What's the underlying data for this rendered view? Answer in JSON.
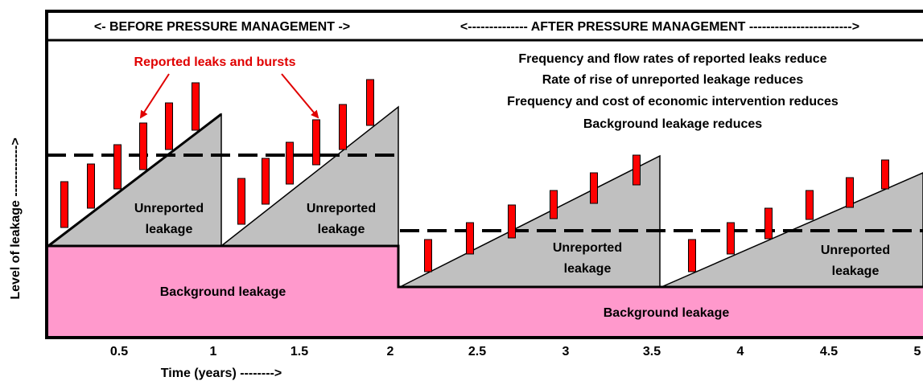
{
  "header": {
    "before": "<- BEFORE PRESSURE MANAGEMENT ->",
    "after": "<-------------- AFTER PRESSURE MANAGEMENT ------------------------>"
  },
  "annotation": "Reported leaks and bursts",
  "notes": [
    "Frequency and flow rates of reported leaks reduce",
    "Rate of rise of unreported leakage reduces",
    "Frequency and cost of economic intervention reduces",
    "Background leakage reduces"
  ],
  "unreported_labels": [
    [
      "Unreported",
      "leakage"
    ],
    [
      "Unreported",
      "leakage"
    ],
    [
      "Unreported",
      "leakage"
    ],
    [
      "Unreported",
      "leakage"
    ]
  ],
  "background_labels": [
    "Background leakage",
    "Background leakage"
  ],
  "x_ticks": [
    "0.5",
    "1",
    "1.5",
    "2",
    "2.5",
    "3",
    "3.5",
    "4",
    "4.5",
    "5"
  ],
  "x_label": "Time (years) -------->",
  "y_label": "Level of leakage ------------>"
}
